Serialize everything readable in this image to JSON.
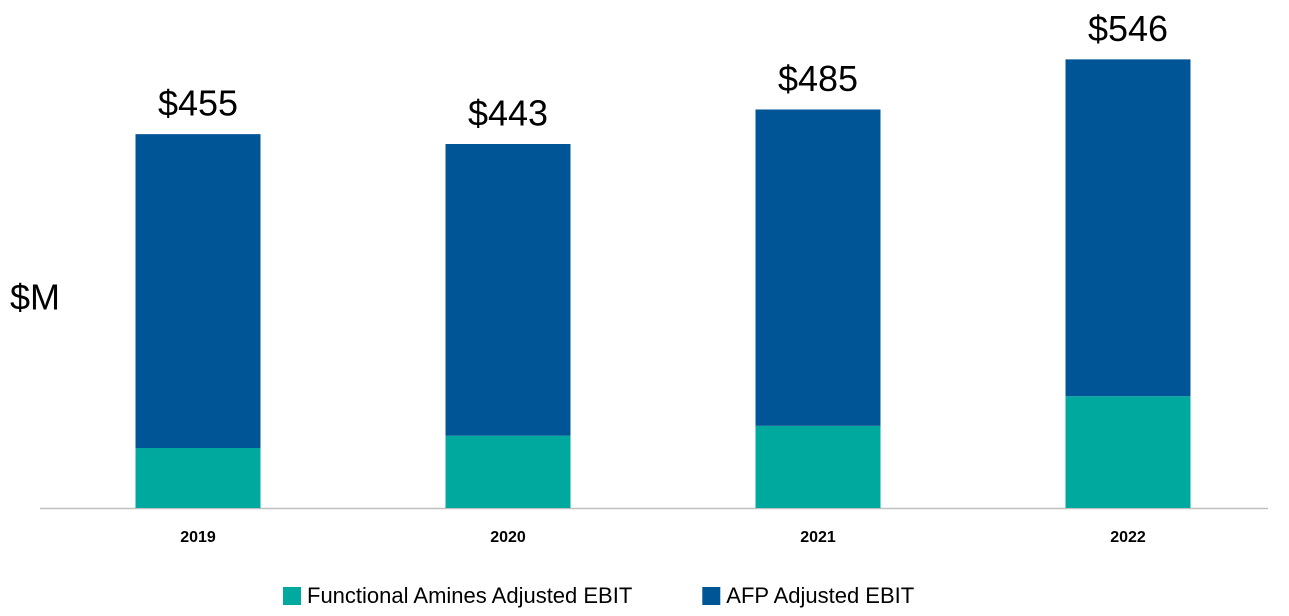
{
  "chart_data": {
    "type": "stacked_bar",
    "y_label": "$M",
    "categories": [
      "2019",
      "2020",
      "2021",
      "2022"
    ],
    "series": [
      {
        "name": "Functional Amines Adjusted EBIT",
        "color": "#00a99d",
        "values": [
          73,
          88,
          100,
          136
        ]
      },
      {
        "name": "AFP Adjusted EBIT",
        "color": "#005596",
        "values": [
          382,
          355,
          385,
          410
        ]
      }
    ],
    "totals": [
      455,
      443,
      485,
      546
    ],
    "total_labels": [
      "$455",
      "$443",
      "$485",
      "$546"
    ],
    "ylim": [
      0,
      600
    ],
    "legend": "bottom"
  }
}
